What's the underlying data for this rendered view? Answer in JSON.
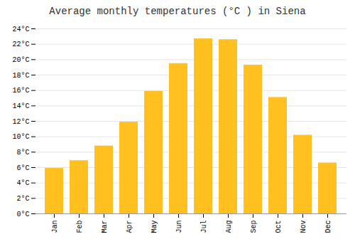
{
  "chart_data": {
    "type": "bar",
    "title": "Average monthly temperatures (°C ) in Siena",
    "categories": [
      "Jan",
      "Feb",
      "Mar",
      "Apr",
      "May",
      "Jun",
      "Jul",
      "Aug",
      "Sep",
      "Oct",
      "Nov",
      "Dec"
    ],
    "values": [
      5.9,
      6.9,
      8.8,
      11.9,
      15.9,
      19.5,
      22.7,
      22.6,
      19.3,
      15.1,
      10.2,
      6.6
    ],
    "color": "#FFC020",
    "ylim": [
      0,
      24
    ],
    "yticks": [
      {
        "value": 0,
        "label": "0°C"
      },
      {
        "value": 2,
        "label": "2°C"
      },
      {
        "value": 4,
        "label": "4°C"
      },
      {
        "value": 6,
        "label": "6°C"
      },
      {
        "value": 8,
        "label": "8°C"
      },
      {
        "value": 10,
        "label": "10°C"
      },
      {
        "value": 12,
        "label": "12°C"
      },
      {
        "value": 14,
        "label": "14°C"
      },
      {
        "value": 16,
        "label": "16°C"
      },
      {
        "value": 18,
        "label": "18°C"
      },
      {
        "value": 20,
        "label": "20°C"
      },
      {
        "value": 22,
        "label": "22°C"
      },
      {
        "value": 24,
        "label": "24°C"
      }
    ],
    "grid": true
  }
}
